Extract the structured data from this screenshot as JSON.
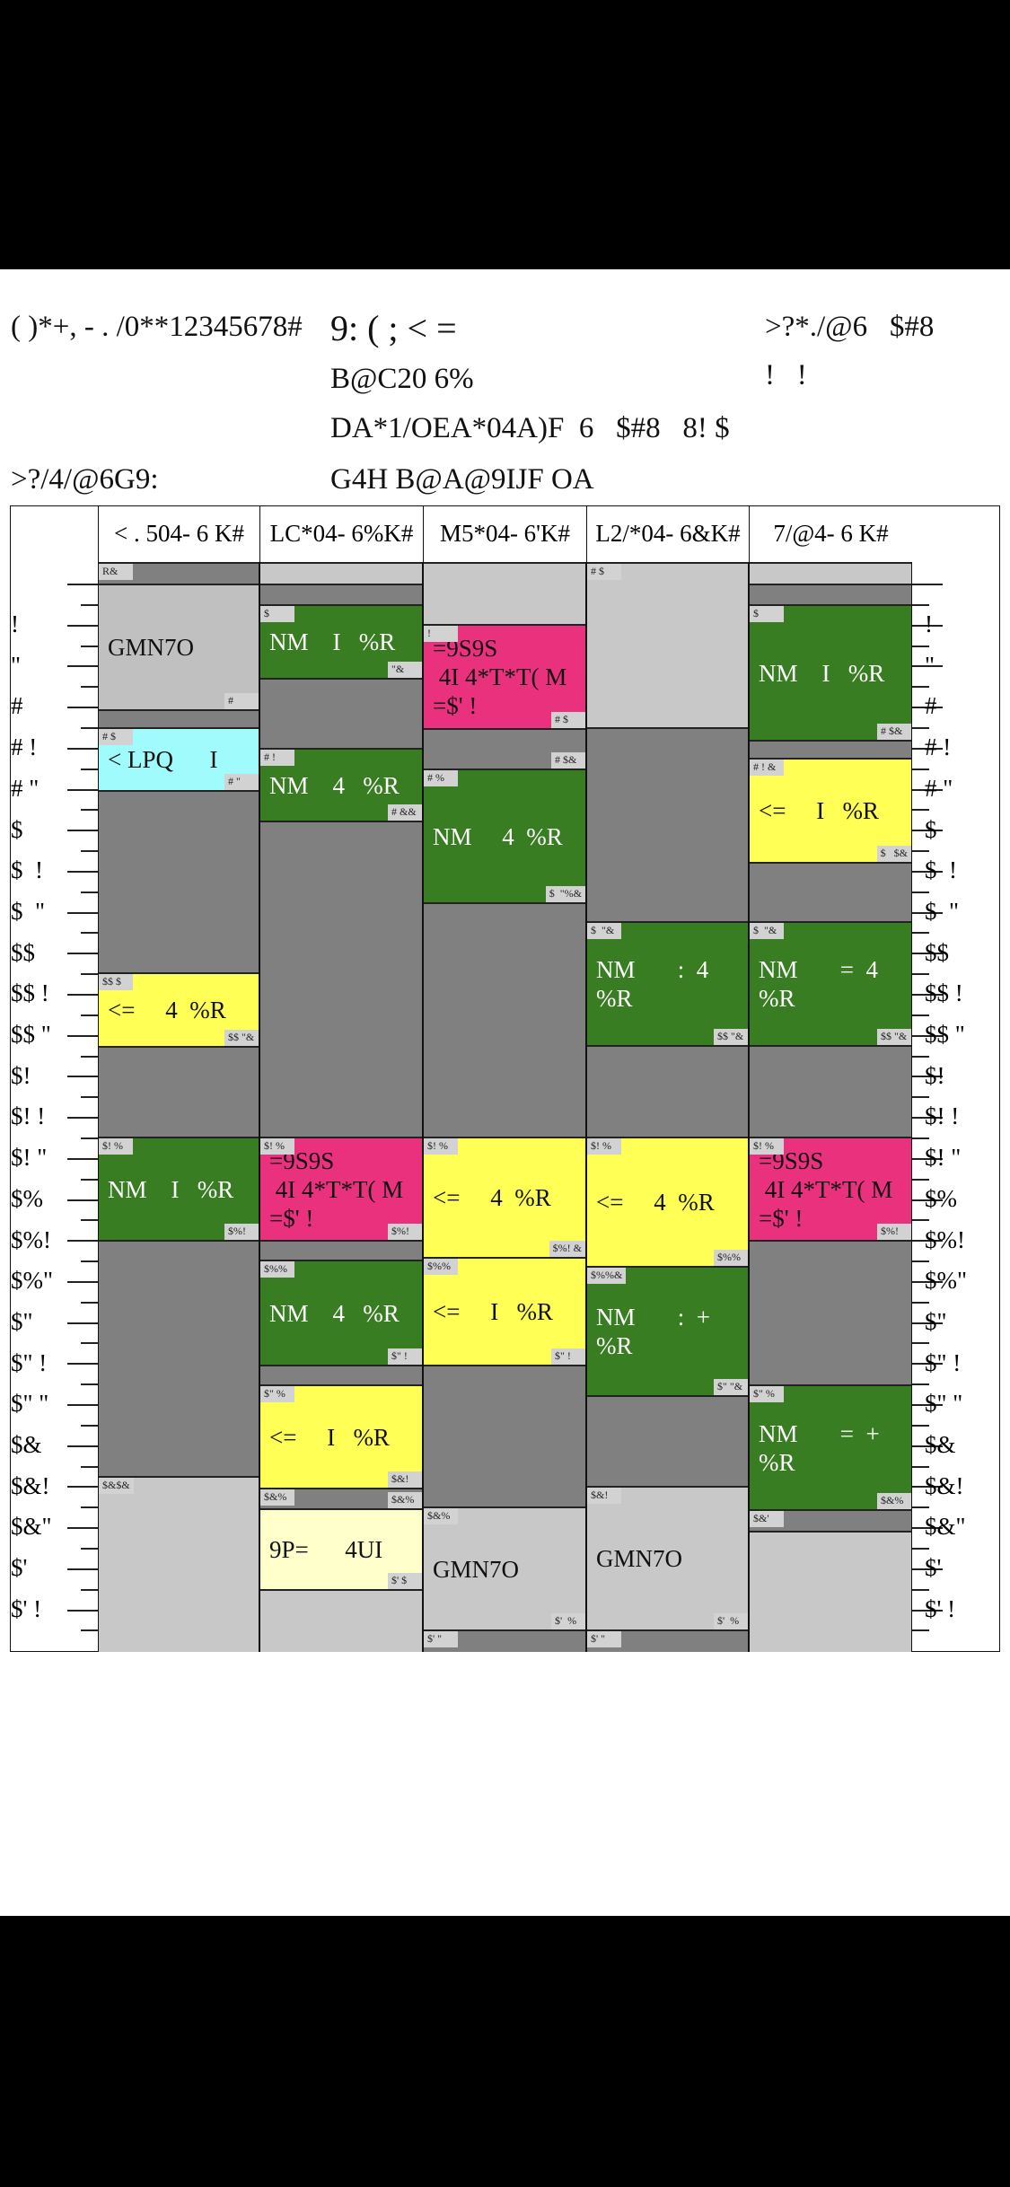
{
  "header": {
    "title_left": "( )*+, - . /0**12345678#",
    "title_center": "9: ( ; < =",
    "line2": "B@C20 6%",
    "line3": "DA*1/OEA*04A)F  6   $#8   8! $",
    "line4": "G4H B@A@9IJF OA",
    "left_sub": ">?/4/@6G9:",
    "right_title": ">?*./@6   $#8",
    "right_sub": "!   !"
  },
  "time_labels": [
    "!",
    "\"",
    "#",
    "# !",
    "# \"",
    "$",
    "$  !",
    "$  \"",
    "$$",
    "$$ !",
    "$$ \"",
    "$!",
    "$! !",
    "$! \"",
    "$%",
    "$%!",
    "$%\"",
    "$\"",
    "$\" !",
    "$\" \"",
    "$&",
    "$&!",
    "$&\"",
    "$'",
    "$' !"
  ],
  "colors": {
    "gray": "#808080",
    "light": "#c8c8c8",
    "silver": "#c0c0c0",
    "green": "#387d21",
    "pink": "#e9317e",
    "yellow": "#ffff55",
    "cyan": "#a0fcfc",
    "pale": "#ffffcc"
  },
  "columns": [
    {
      "header": "< . 504- 6 K#",
      "blocks": [
        {
          "text": "",
          "tags": [
            "R&",
            ""
          ]
        },
        {
          "text": "GMN7O",
          "tags": [
            "",
            "#"
          ]
        },
        {
          "text": "",
          "tags": [
            "",
            ""
          ]
        },
        {
          "text": "< LPQ      I",
          "tags": [
            "# $",
            "# \""
          ]
        },
        {
          "text": "",
          "tags": [
            "",
            ""
          ]
        },
        {
          "text": "<=     4  %R",
          "tags": [
            "$$ $",
            "$$ \"&"
          ]
        },
        {
          "text": "",
          "tags": [
            "",
            ""
          ]
        },
        {
          "text": "NM    I   %R",
          "tags": [
            "$! %",
            "$%!"
          ]
        },
        {
          "text": "",
          "tags": [
            "",
            ""
          ]
        },
        {
          "text": "",
          "tags": [
            "$&$&",
            ""
          ]
        }
      ]
    },
    {
      "header": "LC*04- 6%K#",
      "blocks": [
        {
          "text": "",
          "tags": [
            "",
            ""
          ]
        },
        {
          "text": "",
          "tags": [
            "",
            ""
          ]
        },
        {
          "text": "NM    I   %R",
          "tags": [
            "$",
            "\"&"
          ]
        },
        {
          "text": "",
          "tags": [
            "",
            ""
          ]
        },
        {
          "text": "NM    4   %R",
          "tags": [
            "# !",
            "# &&"
          ]
        },
        {
          "text": "",
          "tags": [
            "",
            ""
          ]
        },
        {
          "text": "=9S9S\n 4I 4*T*T( M\n=$' !",
          "tags": [
            "$! %",
            "$%!"
          ]
        },
        {
          "text": "",
          "tags": [
            "",
            ""
          ]
        },
        {
          "text": "NM    4   %R",
          "tags": [
            "$%%",
            "$\" !"
          ]
        },
        {
          "text": "",
          "tags": [
            "",
            ""
          ]
        },
        {
          "text": "<=     I   %R",
          "tags": [
            "$\" %",
            "$&!"
          ]
        },
        {
          "text": "",
          "tags": [
            "$&%",
            "$&%"
          ]
        },
        {
          "text": "9P=      4UI",
          "tags": [
            "",
            "$' $"
          ]
        },
        {
          "text": "",
          "tags": [
            "",
            ""
          ]
        }
      ]
    },
    {
      "header": "M5*04- 6'K#",
      "blocks": [
        {
          "text": "",
          "tags": [
            "",
            ""
          ]
        },
        {
          "text": "=9S9S\n 4I 4*T*T( M\n=$' !",
          "tags": [
            "!",
            "# $"
          ]
        },
        {
          "text": "",
          "tags": [
            "",
            "# $&"
          ]
        },
        {
          "text": "NM     4  %R",
          "tags": [
            "# %",
            "$  \"%&"
          ]
        },
        {
          "text": "",
          "tags": [
            "",
            ""
          ]
        },
        {
          "text": "<=     4  %R",
          "tags": [
            "$! %",
            "$%! &"
          ]
        },
        {
          "text": "<=     I   %R",
          "tags": [
            "$%%",
            "$\" !"
          ]
        },
        {
          "text": "",
          "tags": [
            "",
            ""
          ]
        },
        {
          "text": "GMN7O",
          "tags": [
            "$&%",
            "$'  %"
          ]
        },
        {
          "text": "",
          "tags": [
            "$' \"",
            ""
          ]
        }
      ]
    },
    {
      "header": "L2/*04- 6&K#",
      "blocks": [
        {
          "text": "",
          "tags": [
            "# $",
            ""
          ]
        },
        {
          "text": "",
          "tags": [
            "",
            ""
          ]
        },
        {
          "text": "NM       :  4\n%R",
          "tags": [
            "$  \"&",
            "$$ \"&"
          ]
        },
        {
          "text": "",
          "tags": [
            "",
            ""
          ]
        },
        {
          "text": "<=     4  %R",
          "tags": [
            "$! %",
            "$%%"
          ]
        },
        {
          "text": "NM       :  +\n%R",
          "tags": [
            "$%%&",
            "$\" \"&"
          ]
        },
        {
          "text": "",
          "tags": [
            "",
            ""
          ]
        },
        {
          "text": "GMN7O",
          "tags": [
            "$&!",
            "$'  %"
          ]
        },
        {
          "text": "",
          "tags": [
            "$' \"",
            ""
          ]
        }
      ]
    },
    {
      "header": "7/@4- 6 K#",
      "blocks": [
        {
          "text": "",
          "tags": [
            "",
            ""
          ]
        },
        {
          "text": "",
          "tags": [
            "",
            ""
          ]
        },
        {
          "text": "NM    I   %R",
          "tags": [
            "$",
            "# $&"
          ]
        },
        {
          "text": "",
          "tags": [
            "",
            ""
          ]
        },
        {
          "text": "<=     I   %R",
          "tags": [
            "# ! &",
            "$   $&"
          ]
        },
        {
          "text": "",
          "tags": [
            "",
            ""
          ]
        },
        {
          "text": "NM       =  4\n%R",
          "tags": [
            "$  \"&",
            "$$ \"&"
          ]
        },
        {
          "text": "",
          "tags": [
            "",
            ""
          ]
        },
        {
          "text": "=9S9S\n 4I 4*T*T( M\n=$' !",
          "tags": [
            "$! %",
            "$%!"
          ]
        },
        {
          "text": "",
          "tags": [
            "",
            ""
          ]
        },
        {
          "text": "NM       =  +\n%R",
          "tags": [
            "$\" %",
            "$&%"
          ]
        },
        {
          "text": "",
          "tags": [
            "$&'",
            ""
          ]
        },
        {
          "text": "",
          "tags": [
            "",
            ""
          ]
        }
      ]
    }
  ]
}
